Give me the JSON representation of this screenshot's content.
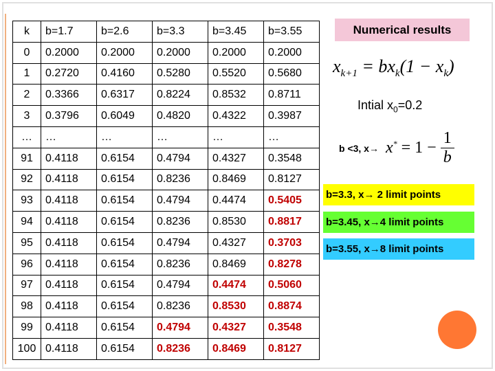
{
  "table": {
    "header": [
      "k",
      "b=1.7",
      "b=2.6",
      "b=3.3",
      "b=3.45",
      "b=3.55"
    ],
    "highlight_color": "#c00000",
    "rows": [
      {
        "cells": [
          "0",
          "0.2000",
          "0.2000",
          "0.2000",
          "0.2000",
          "0.2000"
        ],
        "highlighted": []
      },
      {
        "cells": [
          "1",
          "0.2720",
          "0.4160",
          "0.5280",
          "0.5520",
          "0.5680"
        ],
        "highlighted": []
      },
      {
        "cells": [
          "2",
          "0.3366",
          "0.6317",
          "0.8224",
          "0.8532",
          "0.8711"
        ],
        "highlighted": []
      },
      {
        "cells": [
          "3",
          "0.3796",
          "0.6049",
          "0.4820",
          "0.4322",
          "0.3987"
        ],
        "highlighted": []
      },
      {
        "cells": [
          "…",
          "…",
          "…",
          "…",
          "…",
          "…"
        ],
        "highlighted": []
      },
      {
        "cells": [
          "91",
          "0.4118",
          "0.6154",
          "0.4794",
          "0.4327",
          "0.3548"
        ],
        "highlighted": []
      },
      {
        "cells": [
          "92",
          "0.4118",
          "0.6154",
          "0.8236",
          "0.8469",
          "0.8127"
        ],
        "highlighted": []
      },
      {
        "cells": [
          "93",
          "0.4118",
          "0.6154",
          "0.4794",
          "0.4474",
          "0.5405"
        ],
        "highlighted": [
          5
        ]
      },
      {
        "cells": [
          "94",
          "0.4118",
          "0.6154",
          "0.8236",
          "0.8530",
          "0.8817"
        ],
        "highlighted": [
          5
        ]
      },
      {
        "cells": [
          "95",
          "0.4118",
          "0.6154",
          "0.4794",
          "0.4327",
          "0.3703"
        ],
        "highlighted": [
          5
        ]
      },
      {
        "cells": [
          "96",
          "0.4118",
          "0.6154",
          "0.8236",
          "0.8469",
          "0.8278"
        ],
        "highlighted": [
          5
        ]
      },
      {
        "cells": [
          "97",
          "0.4118",
          "0.6154",
          "0.4794",
          "0.4474",
          "0.5060"
        ],
        "highlighted": [
          4,
          5
        ]
      },
      {
        "cells": [
          "98",
          "0.4118",
          "0.6154",
          "0.8236",
          "0.8530",
          "0.8874"
        ],
        "highlighted": [
          4,
          5
        ]
      },
      {
        "cells": [
          "99",
          "0.4118",
          "0.6154",
          "0.4794",
          "0.4327",
          "0.3548"
        ],
        "highlighted": [
          3,
          4,
          5
        ]
      },
      {
        "cells": [
          "100",
          "0.4118",
          "0.6154",
          "0.8236",
          "0.8469",
          "0.8127"
        ],
        "highlighted": [
          3,
          4,
          5
        ]
      }
    ]
  },
  "side": {
    "title": "Numerical results",
    "formula": {
      "x": "x",
      "x_sub": "k+1",
      "eq": "= bx",
      "eq_sub": "k",
      "paren": "(1 − x",
      "paren_sub": "k",
      "close": ")"
    },
    "initial": {
      "text": "Intial x",
      "sub": "0",
      "value": "=0.2"
    },
    "fixed_point": {
      "cond": "b <3, x→",
      "x": "x",
      "sup": "*",
      "eq": "= 1 −",
      "num": "1",
      "den": "b"
    },
    "boxes": [
      {
        "text": "b=3.3, x→ 2 limit points",
        "color": "#ffff00"
      },
      {
        "text": "b=3.45, x→4 limit points",
        "color": "#66ff33"
      },
      {
        "text": "b=3.55, x→8 limit points",
        "color": "#33ccff"
      }
    ]
  }
}
